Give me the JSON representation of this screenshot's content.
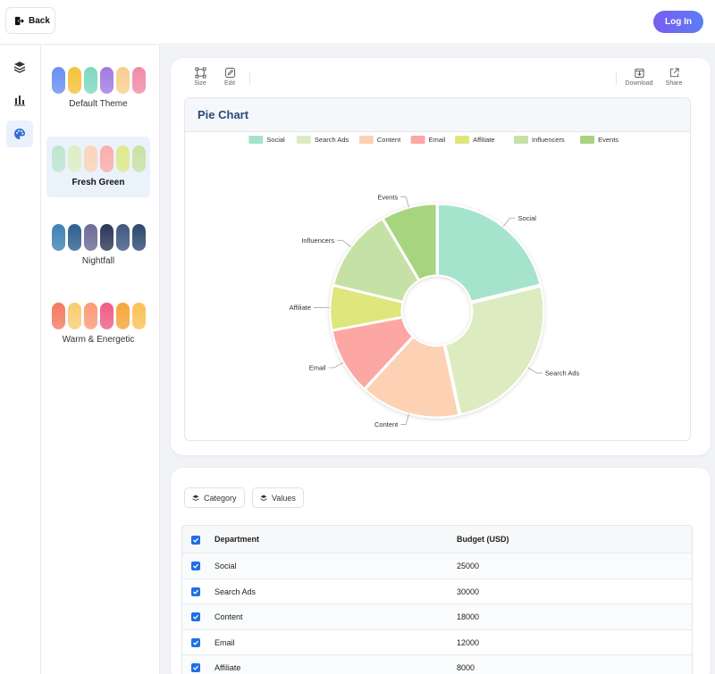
{
  "header": {
    "back_label": "Back",
    "login_label": "Log In"
  },
  "rail": {
    "items": [
      {
        "icon": "layers-icon"
      },
      {
        "icon": "bar-chart-icon"
      },
      {
        "icon": "palette-icon",
        "active": true
      }
    ]
  },
  "themes": [
    {
      "name": "Default Theme",
      "colors": [
        "#6a8ff0",
        "#f5c23a",
        "#7ed8c0",
        "#a27ae0",
        "#f7cf8e",
        "#f08aa8"
      ]
    },
    {
      "name": "Fresh Green",
      "colors": [
        "#bfe6cf",
        "#dfeec4",
        "#fcd5b8",
        "#fbaeab",
        "#e0e98a",
        "#c9e2a4"
      ],
      "selected": true
    },
    {
      "name": "Nightfall",
      "colors": [
        "#3d82b3",
        "#2e5f8f",
        "#6d6a96",
        "#2d3658",
        "#3d5880",
        "#2b4a6e"
      ]
    },
    {
      "name": "Warm & Energetic",
      "colors": [
        "#f47a61",
        "#f8cd6f",
        "#fb9a7a",
        "#ee5d87",
        "#f7a53c",
        "#fcc257"
      ]
    }
  ],
  "toolbar": {
    "size_label": "Size",
    "edit_label": "Edit",
    "download_label": "Download",
    "share_label": "Share"
  },
  "chart_card": {
    "title": "Pie Chart"
  },
  "chart_data": {
    "type": "pie",
    "title": "Pie Chart",
    "donut": true,
    "legend_position": "top",
    "categories": [
      "Social",
      "Search Ads",
      "Content",
      "Email",
      "Affiliate",
      "Influencers",
      "Events"
    ],
    "values": [
      25000,
      30000,
      18000,
      12000,
      8000,
      15000,
      10000
    ],
    "colors": [
      "#a6e3cc",
      "#dcecc0",
      "#fdd1b4",
      "#fca7a4",
      "#dee67c",
      "#c6e1a6",
      "#a8d47f"
    ]
  },
  "data_panel": {
    "category_btn": "Category",
    "values_btn": "Values"
  },
  "table": {
    "headers": [
      "Department",
      "Budget (USD)"
    ],
    "rows": [
      [
        "Social",
        "25000"
      ],
      [
        "Search Ads",
        "30000"
      ],
      [
        "Content",
        "18000"
      ],
      [
        "Email",
        "12000"
      ],
      [
        "Affiliate",
        "8000"
      ]
    ]
  }
}
